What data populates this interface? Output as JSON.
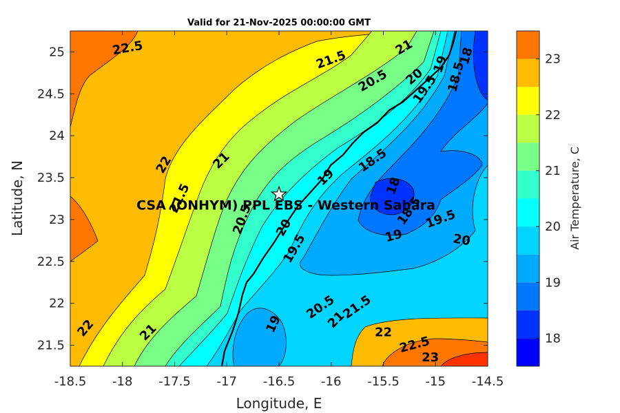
{
  "chart_data": {
    "type": "heatmap",
    "title": "Valid for 21-Nov-2025 00:00:00 GMT",
    "xlabel": "Longitude, E",
    "ylabel": "Latitude, N",
    "xlim": [
      -18.5,
      -14.5
    ],
    "ylim": [
      21.25,
      25.25
    ],
    "xticks": [
      "-18.5",
      "-18",
      "-17.5",
      "-17",
      "-16.5",
      "-16",
      "-15.5",
      "-15",
      "-14.5"
    ],
    "xtick_values": [
      -18.5,
      -18,
      -17.5,
      -17,
      -16.5,
      -16,
      -15.5,
      -15,
      -14.5
    ],
    "yticks": [
      "21.5",
      "22",
      "22.5",
      "23",
      "23.5",
      "24",
      "24.5",
      "25"
    ],
    "ytick_values": [
      21.5,
      22,
      22.5,
      23,
      23.5,
      24,
      24.5,
      25
    ],
    "colorbar": {
      "label": "Air Temperature, C",
      "range": [
        17.5,
        23.5
      ],
      "levels": [
        17.5,
        18,
        18.5,
        19,
        19.5,
        20,
        20.5,
        21,
        21.5,
        22,
        22.5,
        23,
        23.5
      ],
      "colors": [
        "#0000ff",
        "#0033ff",
        "#0077ff",
        "#00aaff",
        "#00d4ff",
        "#00ffff",
        "#33ffcc",
        "#77ff88",
        "#bbff44",
        "#ffff00",
        "#ffbb00",
        "#ff7700",
        "#ff3300",
        "#ff0000"
      ],
      "tick_labels": [
        "18",
        "19",
        "20",
        "21",
        "22",
        "23"
      ],
      "tick_values": [
        18,
        19,
        20,
        21,
        22,
        23
      ]
    },
    "contour_labels": [
      {
        "text": "22.5",
        "lon": -17.95,
        "lat": 25.04,
        "rot": -10
      },
      {
        "text": "21.5",
        "lon": -16.0,
        "lat": 24.9,
        "rot": -20
      },
      {
        "text": "21",
        "lon": -15.3,
        "lat": 25.05,
        "rot": -30
      },
      {
        "text": "20.5",
        "lon": -15.6,
        "lat": 24.65,
        "rot": -30
      },
      {
        "text": "20",
        "lon": -15.2,
        "lat": 24.7,
        "rot": -40
      },
      {
        "text": "19.5",
        "lon": -15.1,
        "lat": 24.55,
        "rot": -55
      },
      {
        "text": "19",
        "lon": -14.95,
        "lat": 24.85,
        "rot": -70
      },
      {
        "text": "18.5",
        "lon": -14.8,
        "lat": 24.7,
        "rot": -75
      },
      {
        "text": "18",
        "lon": -14.7,
        "lat": 24.95,
        "rot": -75
      },
      {
        "text": "22",
        "lon": -17.6,
        "lat": 23.65,
        "rot": -60
      },
      {
        "text": "21",
        "lon": -17.05,
        "lat": 23.7,
        "rot": -45
      },
      {
        "text": "21.5",
        "lon": -17.45,
        "lat": 23.25,
        "rot": -65
      },
      {
        "text": "20.5",
        "lon": -16.85,
        "lat": 23.0,
        "rot": -70
      },
      {
        "text": "20",
        "lon": -16.45,
        "lat": 22.9,
        "rot": -60
      },
      {
        "text": "19.5",
        "lon": -16.35,
        "lat": 22.65,
        "rot": -60
      },
      {
        "text": "19",
        "lon": -16.05,
        "lat": 23.5,
        "rot": -45
      },
      {
        "text": "18.5",
        "lon": -15.6,
        "lat": 23.7,
        "rot": -35
      },
      {
        "text": "18",
        "lon": -15.4,
        "lat": 23.4,
        "rot": -70
      },
      {
        "text": "18.5",
        "lon": -15.25,
        "lat": 23.1,
        "rot": -55
      },
      {
        "text": "19.5",
        "lon": -14.95,
        "lat": 23.0,
        "rot": -20
      },
      {
        "text": "19",
        "lon": -15.4,
        "lat": 22.8,
        "rot": -15
      },
      {
        "text": "20",
        "lon": -14.75,
        "lat": 22.75,
        "rot": 10
      },
      {
        "text": "22",
        "lon": -18.35,
        "lat": 21.7,
        "rot": -50
      },
      {
        "text": "21",
        "lon": -17.75,
        "lat": 21.65,
        "rot": -45
      },
      {
        "text": "19",
        "lon": -16.55,
        "lat": 21.75,
        "rot": -65
      },
      {
        "text": "20.5",
        "lon": -16.1,
        "lat": 21.95,
        "rot": -35
      },
      {
        "text": "21",
        "lon": -15.95,
        "lat": 21.8,
        "rot": -45
      },
      {
        "text": "21.5",
        "lon": -15.75,
        "lat": 21.95,
        "rot": -35
      },
      {
        "text": "22",
        "lon": -15.5,
        "lat": 21.65,
        "rot": 0
      },
      {
        "text": "22.5",
        "lon": -15.2,
        "lat": 21.5,
        "rot": -15
      },
      {
        "text": "23",
        "lon": -15.05,
        "lat": 21.35,
        "rot": 0
      }
    ],
    "site": {
      "label": "CSA (ONHYM) PPL EBS - Western Sahara",
      "lon": -16.5,
      "lat": 23.3
    }
  }
}
